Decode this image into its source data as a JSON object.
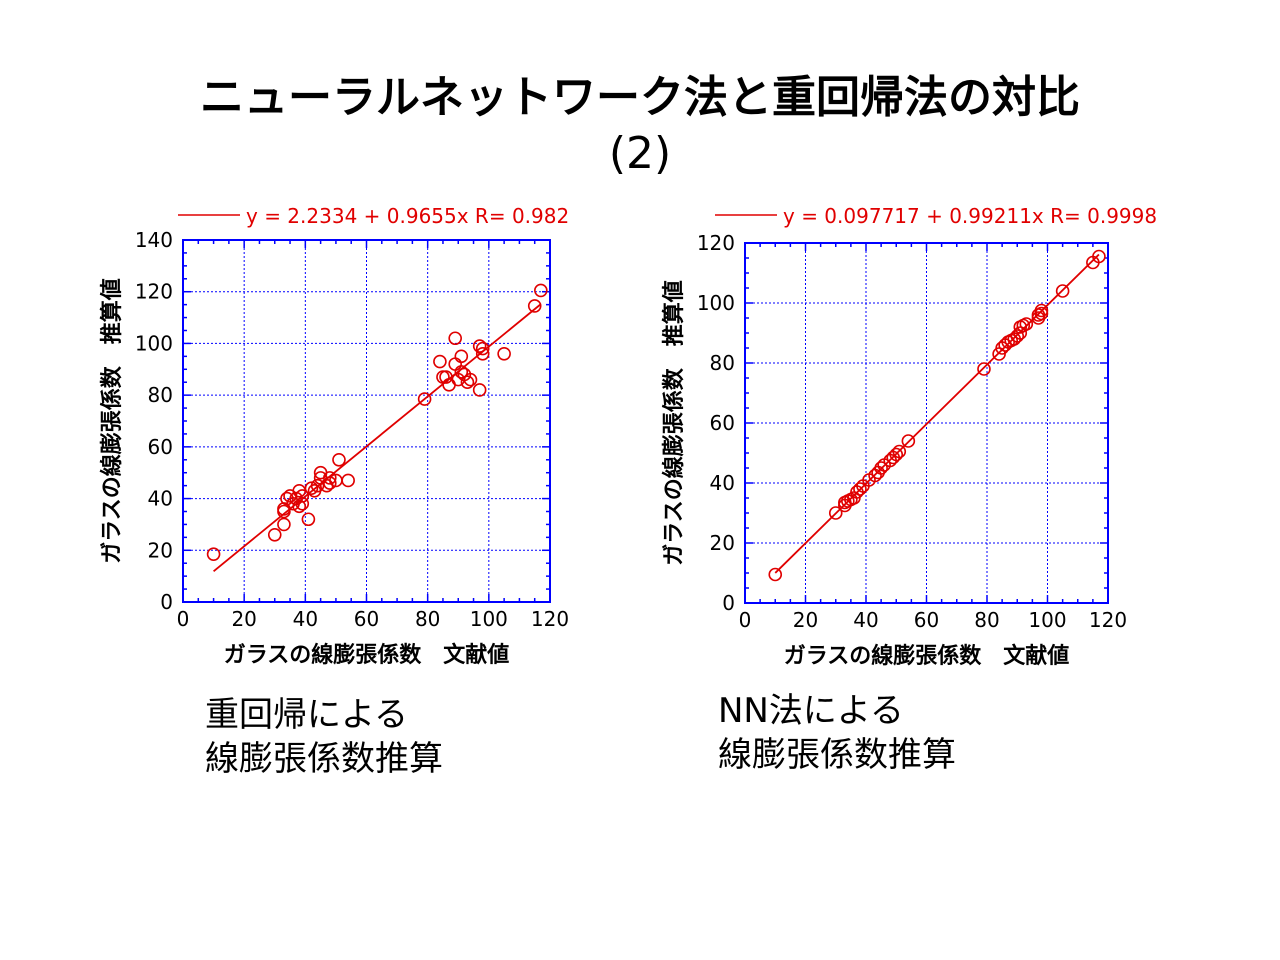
{
  "slide": {
    "title_line1": "ニューラルネットワーク法と重回帰法の対比",
    "title_line2": "(2)"
  },
  "captions": {
    "left_line1": "重回帰による",
    "left_line2": "線膨張係数推算",
    "right_line1": "NN法による",
    "right_line2": "線膨張係数推算"
  },
  "colors": {
    "frame": "#0000ff",
    "grid": "#0000ff",
    "data": "#e00000",
    "text": "#000000"
  },
  "chart_data": [
    {
      "type": "scatter",
      "legend_text": "y = 2.2334 + 0.9655x R= 0.98245",
      "legend_position": "top",
      "xlabel": "ガラスの線膨張係数　文献値",
      "ylabel": "ガラスの線膨張係数　推算値",
      "xlim": [
        0,
        120
      ],
      "ylim": [
        0,
        140
      ],
      "xticks": [
        0,
        20,
        40,
        60,
        80,
        100,
        120
      ],
      "yticks": [
        0,
        20,
        40,
        60,
        80,
        100,
        120,
        140
      ],
      "grid": true,
      "fit_line": {
        "intercept": 2.2334,
        "slope": 0.9655,
        "x_range": [
          10,
          117
        ]
      },
      "points": [
        [
          10,
          18.5
        ],
        [
          30,
          26
        ],
        [
          33,
          30
        ],
        [
          33,
          35
        ],
        [
          33,
          36
        ],
        [
          34,
          40
        ],
        [
          35,
          41
        ],
        [
          36,
          38
        ],
        [
          37,
          40
        ],
        [
          38,
          37
        ],
        [
          38,
          43
        ],
        [
          39,
          38
        ],
        [
          39,
          41
        ],
        [
          41,
          32
        ],
        [
          42,
          44
        ],
        [
          43,
          43
        ],
        [
          44,
          45
        ],
        [
          45,
          48
        ],
        [
          45,
          50
        ],
        [
          47,
          45
        ],
        [
          48,
          46
        ],
        [
          48,
          48
        ],
        [
          50,
          47
        ],
        [
          51,
          55
        ],
        [
          54,
          47
        ],
        [
          79,
          78.5
        ],
        [
          84,
          93
        ],
        [
          85,
          87
        ],
        [
          86,
          87
        ],
        [
          87,
          84
        ],
        [
          89,
          92
        ],
        [
          89,
          102
        ],
        [
          90,
          86
        ],
        [
          91,
          95
        ],
        [
          91,
          89
        ],
        [
          92,
          88
        ],
        [
          93,
          85
        ],
        [
          94,
          86
        ],
        [
          97,
          99
        ],
        [
          97,
          82
        ],
        [
          98,
          98
        ],
        [
          98,
          96
        ],
        [
          105,
          96
        ],
        [
          115,
          114.5
        ],
        [
          117,
          120.5
        ]
      ]
    },
    {
      "type": "scatter",
      "legend_text": "y = 0.097717 + 0.99211x R= 0.9998",
      "legend_position": "top",
      "xlabel": "ガラスの線膨張係数　文献値",
      "ylabel": "ガラスの線膨張係数　推算値",
      "xlim": [
        0,
        120
      ],
      "ylim": [
        0,
        120
      ],
      "xticks": [
        0,
        20,
        40,
        60,
        80,
        100,
        120
      ],
      "yticks": [
        0,
        20,
        40,
        60,
        80,
        100,
        120
      ],
      "grid": true,
      "fit_line": {
        "intercept": 0.097717,
        "slope": 0.99211,
        "x_range": [
          10,
          117
        ]
      },
      "points": [
        [
          10,
          9.5
        ],
        [
          30,
          30
        ],
        [
          33,
          32.5
        ],
        [
          33,
          33.5
        ],
        [
          34,
          34
        ],
        [
          35,
          34.5
        ],
        [
          36,
          35
        ],
        [
          37,
          37
        ],
        [
          38,
          38
        ],
        [
          39,
          39
        ],
        [
          41,
          41
        ],
        [
          43,
          42.5
        ],
        [
          44,
          43.5
        ],
        [
          45,
          45
        ],
        [
          46,
          46
        ],
        [
          48,
          47.5
        ],
        [
          49,
          48.5
        ],
        [
          50,
          49.5
        ],
        [
          51,
          50.5
        ],
        [
          54,
          54
        ],
        [
          79,
          78
        ],
        [
          84,
          83
        ],
        [
          85,
          85
        ],
        [
          86,
          86
        ],
        [
          87,
          87
        ],
        [
          88,
          87.5
        ],
        [
          89,
          88
        ],
        [
          90,
          89
        ],
        [
          91,
          90
        ],
        [
          91,
          92
        ],
        [
          92,
          92.5
        ],
        [
          93,
          93
        ],
        [
          97,
          95
        ],
        [
          97,
          96
        ],
        [
          98,
          96.5
        ],
        [
          98,
          97.5
        ],
        [
          105,
          104
        ],
        [
          115,
          113.5
        ],
        [
          117,
          115.5
        ]
      ]
    }
  ]
}
